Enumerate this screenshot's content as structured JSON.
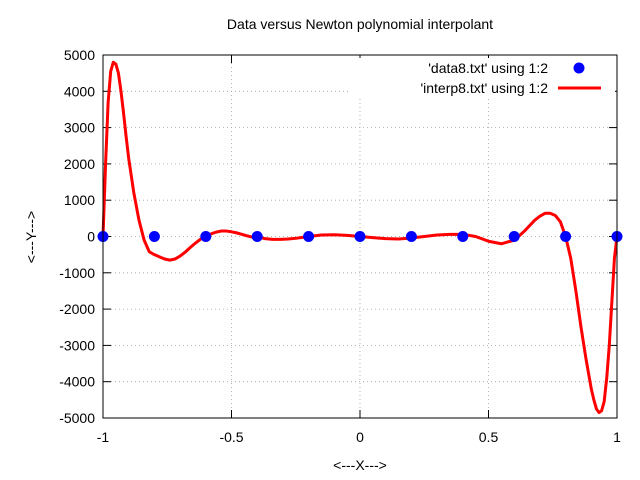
{
  "chart_data": {
    "type": "line",
    "title": "Data versus Newton polynomial interpolant",
    "xlabel": "<---X--->",
    "ylabel": "<---Y--->",
    "xlim": [
      -1,
      1
    ],
    "ylim": [
      -5000,
      5000
    ],
    "x_ticks": [
      -1,
      -0.5,
      0,
      0.5,
      1
    ],
    "x_tick_labels": [
      "-1",
      "-0.5",
      "0",
      "0.5",
      "1"
    ],
    "y_ticks": [
      -5000,
      -4000,
      -3000,
      -2000,
      -1000,
      0,
      1000,
      2000,
      3000,
      4000,
      5000
    ],
    "y_tick_labels": [
      "-5000",
      "-4000",
      "-3000",
      "-2000",
      "-1000",
      "0",
      "1000",
      "2000",
      "3000",
      "4000",
      "5000"
    ],
    "grid": true,
    "legend_position": "top-right",
    "series": [
      {
        "name": "'data8.txt' using 1:2",
        "kind": "points",
        "color": "#0000ff",
        "x": [
          -1,
          -0.8,
          -0.6,
          -0.4,
          -0.2,
          0,
          0.2,
          0.4,
          0.6,
          0.8,
          1
        ],
        "y": [
          0,
          0,
          0,
          0,
          0,
          0,
          0,
          0,
          0,
          0,
          0
        ]
      },
      {
        "name": "'interp8.txt' using 1:2",
        "kind": "line",
        "color": "#ff0000",
        "x": [
          -1,
          -0.99,
          -0.98,
          -0.97,
          -0.96,
          -0.95,
          -0.94,
          -0.93,
          -0.92,
          -0.91,
          -0.9,
          -0.88,
          -0.86,
          -0.84,
          -0.82,
          -0.8,
          -0.78,
          -0.76,
          -0.74,
          -0.72,
          -0.7,
          -0.68,
          -0.66,
          -0.64,
          -0.62,
          -0.6,
          -0.58,
          -0.56,
          -0.54,
          -0.52,
          -0.5,
          -0.48,
          -0.46,
          -0.44,
          -0.42,
          -0.4,
          -0.37,
          -0.34,
          -0.31,
          -0.28,
          -0.25,
          -0.2,
          -0.15,
          -0.1,
          -0.05,
          0,
          0.05,
          0.1,
          0.15,
          0.2,
          0.25,
          0.3,
          0.35,
          0.4,
          0.45,
          0.5,
          0.55,
          0.6,
          0.62,
          0.64,
          0.66,
          0.68,
          0.7,
          0.72,
          0.74,
          0.76,
          0.78,
          0.8,
          0.82,
          0.84,
          0.86,
          0.88,
          0.9,
          0.91,
          0.92,
          0.93,
          0.94,
          0.95,
          0.96,
          0.97,
          0.98,
          0.99,
          1
        ],
        "y": [
          0,
          2000,
          3700,
          4550,
          4800,
          4750,
          4500,
          4000,
          3400,
          2750,
          2150,
          1200,
          450,
          -100,
          -420,
          -500,
          -560,
          -620,
          -650,
          -620,
          -540,
          -430,
          -300,
          -180,
          -70,
          0,
          70,
          120,
          150,
          150,
          130,
          100,
          60,
          20,
          -15,
          0,
          -60,
          -80,
          -80,
          -70,
          -50,
          0,
          40,
          50,
          30,
          0,
          -30,
          -60,
          -70,
          -40,
          0,
          40,
          60,
          60,
          0,
          -130,
          -200,
          -100,
          20,
          150,
          300,
          450,
          560,
          640,
          640,
          580,
          400,
          0,
          -600,
          -1500,
          -2500,
          -3400,
          -4200,
          -4500,
          -4750,
          -4850,
          -4800,
          -4550,
          -3900,
          -3000,
          -1800,
          -600,
          0
        ]
      }
    ]
  }
}
